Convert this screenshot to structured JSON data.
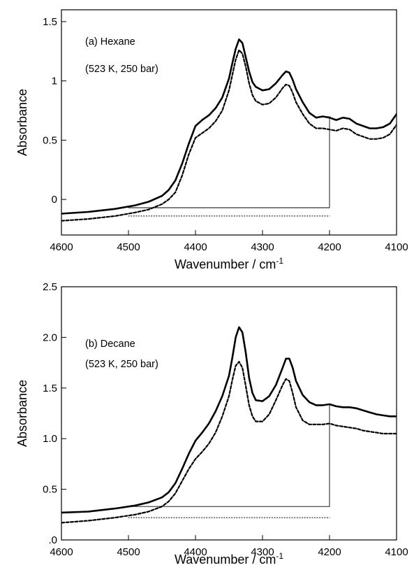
{
  "chart_data": [
    {
      "type": "line",
      "annotation_line1": "(a)  Hexane",
      "annotation_line2": "(523 K,  250 bar)",
      "xlabel": "Wavenumber / cm",
      "xlabel_sup": "-1",
      "ylabel": "Absorbance",
      "xlim": [
        4600,
        4100
      ],
      "ylim": [
        -0.3,
        1.6
      ],
      "xticks": [
        4600,
        4500,
        4400,
        4300,
        4200,
        4100
      ],
      "xtick_labels": [
        "4600",
        "4500",
        "4400",
        "4300",
        "4200",
        "4100"
      ],
      "yticks": [
        0,
        0.5,
        1,
        1.5
      ],
      "ytick_labels": [
        "0",
        "0.5",
        "1",
        "1.5"
      ],
      "series": [
        {
          "style": "solid",
          "color": "#000000",
          "x": [
            4600,
            4560,
            4520,
            4490,
            4470,
            4450,
            4440,
            4430,
            4420,
            4410,
            4400,
            4390,
            4380,
            4370,
            4360,
            4350,
            4345,
            4340,
            4335,
            4330,
            4325,
            4320,
            4315,
            4310,
            4300,
            4290,
            4280,
            4270,
            4265,
            4260,
            4255,
            4250,
            4240,
            4230,
            4220,
            4210,
            4200,
            4190,
            4180,
            4170,
            4160,
            4150,
            4140,
            4130,
            4120,
            4110,
            4100
          ],
          "y": [
            -0.12,
            -0.105,
            -0.08,
            -0.05,
            -0.02,
            0.03,
            0.08,
            0.16,
            0.3,
            0.47,
            0.62,
            0.67,
            0.71,
            0.77,
            0.86,
            1.02,
            1.15,
            1.27,
            1.35,
            1.32,
            1.2,
            1.08,
            0.99,
            0.95,
            0.92,
            0.93,
            0.98,
            1.05,
            1.08,
            1.07,
            1.01,
            0.93,
            0.82,
            0.73,
            0.69,
            0.7,
            0.69,
            0.67,
            0.69,
            0.68,
            0.64,
            0.62,
            0.6,
            0.6,
            0.61,
            0.64,
            0.72
          ]
        },
        {
          "style": "dashed",
          "color": "#000000",
          "x": [
            4600,
            4560,
            4520,
            4490,
            4470,
            4450,
            4440,
            4430,
            4420,
            4410,
            4400,
            4390,
            4380,
            4370,
            4360,
            4350,
            4345,
            4340,
            4335,
            4330,
            4325,
            4320,
            4315,
            4310,
            4300,
            4290,
            4280,
            4270,
            4265,
            4260,
            4255,
            4250,
            4240,
            4230,
            4220,
            4210,
            4200,
            4190,
            4180,
            4170,
            4160,
            4150,
            4140,
            4130,
            4120,
            4110,
            4100
          ],
          "y": [
            -0.18,
            -0.165,
            -0.14,
            -0.11,
            -0.085,
            -0.04,
            0.0,
            0.06,
            0.2,
            0.38,
            0.52,
            0.56,
            0.6,
            0.66,
            0.75,
            0.92,
            1.05,
            1.18,
            1.26,
            1.23,
            1.12,
            0.98,
            0.88,
            0.83,
            0.8,
            0.81,
            0.86,
            0.94,
            0.97,
            0.96,
            0.9,
            0.82,
            0.72,
            0.64,
            0.6,
            0.6,
            0.59,
            0.58,
            0.6,
            0.59,
            0.55,
            0.53,
            0.51,
            0.51,
            0.52,
            0.55,
            0.63
          ]
        },
        {
          "style": "thin-solid",
          "color": "#000000",
          "x": [
            4500,
            4200,
            4200
          ],
          "y": [
            -0.07,
            -0.07,
            0.7
          ]
        },
        {
          "style": "dotted",
          "color": "#000000",
          "x": [
            4500,
            4200
          ],
          "y": [
            -0.14,
            -0.14
          ]
        }
      ]
    },
    {
      "type": "line",
      "annotation_line1": "(b)  Decane",
      "annotation_line2": "(523 K, 250 bar)",
      "xlabel": "Wavenumber / cm",
      "xlabel_sup": "-1",
      "ylabel": "Absorbance",
      "xlim": [
        4600,
        4100
      ],
      "ylim": [
        0,
        2.5
      ],
      "xticks": [
        4600,
        4500,
        4400,
        4300,
        4200,
        4100
      ],
      "xtick_labels": [
        "4600",
        "4500",
        "4400",
        "4300",
        "4200",
        "4100"
      ],
      "yticks": [
        0,
        0.5,
        1.0,
        1.5,
        2.0,
        2.5
      ],
      "ytick_labels": [
        ".0",
        "0.5",
        "1.0",
        "1.5",
        "2.0",
        "2.5"
      ],
      "series": [
        {
          "style": "solid",
          "color": "#000000",
          "x": [
            4600,
            4560,
            4520,
            4490,
            4470,
            4450,
            4440,
            4430,
            4420,
            4410,
            4400,
            4390,
            4380,
            4370,
            4360,
            4350,
            4345,
            4340,
            4335,
            4330,
            4325,
            4320,
            4315,
            4310,
            4300,
            4290,
            4280,
            4270,
            4265,
            4260,
            4255,
            4250,
            4240,
            4230,
            4220,
            4210,
            4200,
            4190,
            4180,
            4170,
            4160,
            4150,
            4140,
            4130,
            4120,
            4110,
            4100
          ],
          "y": [
            0.27,
            0.28,
            0.31,
            0.34,
            0.37,
            0.42,
            0.47,
            0.56,
            0.7,
            0.85,
            0.98,
            1.06,
            1.15,
            1.27,
            1.42,
            1.62,
            1.8,
            2.0,
            2.1,
            2.05,
            1.85,
            1.6,
            1.45,
            1.38,
            1.37,
            1.42,
            1.53,
            1.7,
            1.79,
            1.79,
            1.7,
            1.57,
            1.43,
            1.36,
            1.33,
            1.33,
            1.34,
            1.32,
            1.31,
            1.31,
            1.3,
            1.28,
            1.26,
            1.24,
            1.23,
            1.22,
            1.22
          ]
        },
        {
          "style": "dashed",
          "color": "#000000",
          "x": [
            4600,
            4560,
            4520,
            4490,
            4470,
            4450,
            4440,
            4430,
            4420,
            4410,
            4400,
            4390,
            4380,
            4370,
            4360,
            4350,
            4345,
            4340,
            4335,
            4330,
            4325,
            4320,
            4315,
            4310,
            4300,
            4290,
            4280,
            4270,
            4265,
            4260,
            4255,
            4250,
            4240,
            4230,
            4220,
            4210,
            4200,
            4190,
            4180,
            4170,
            4160,
            4150,
            4140,
            4130,
            4120,
            4110,
            4100
          ],
          "y": [
            0.17,
            0.19,
            0.22,
            0.25,
            0.28,
            0.33,
            0.38,
            0.46,
            0.58,
            0.7,
            0.8,
            0.87,
            0.95,
            1.06,
            1.22,
            1.42,
            1.58,
            1.72,
            1.76,
            1.7,
            1.52,
            1.33,
            1.22,
            1.17,
            1.17,
            1.24,
            1.38,
            1.53,
            1.59,
            1.57,
            1.45,
            1.31,
            1.18,
            1.14,
            1.14,
            1.14,
            1.15,
            1.13,
            1.12,
            1.11,
            1.1,
            1.08,
            1.07,
            1.06,
            1.05,
            1.05,
            1.05
          ]
        },
        {
          "style": "thin-solid",
          "color": "#000000",
          "x": [
            4500,
            4200,
            4200
          ],
          "y": [
            0.33,
            0.33,
            1.34
          ]
        },
        {
          "style": "dotted",
          "color": "#000000",
          "x": [
            4500,
            4200
          ],
          "y": [
            0.22,
            0.22
          ]
        }
      ]
    }
  ]
}
